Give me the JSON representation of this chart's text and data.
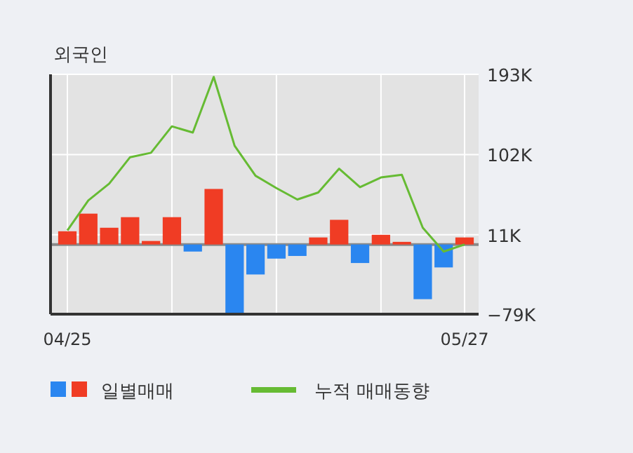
{
  "chart_data": {
    "type": "bar",
    "title": "외국인",
    "categories": [
      "04/25",
      null,
      null,
      null,
      null,
      null,
      null,
      null,
      null,
      null,
      null,
      null,
      null,
      null,
      null,
      null,
      null,
      null,
      null,
      "05/27"
    ],
    "series": [
      {
        "name": "일별매매",
        "colors": [
          "#f03c24",
          "#f03c24",
          "#f03c24",
          "#f03c24",
          "#f03c24",
          "#f03c24",
          "#2a86f0",
          "#f03c24",
          "#2a86f0",
          "#2a86f0",
          "#2a86f0",
          "#2a86f0",
          "#f03c24",
          "#f03c24",
          "#2a86f0",
          "#f03c24",
          "#f03c24",
          "#2a86f0",
          "#2a86f0",
          "#f03c24"
        ],
        "values": [
          15,
          35,
          19,
          31,
          4,
          31,
          -8,
          63,
          -78,
          -34,
          -16,
          -13,
          8,
          28,
          -21,
          11,
          3,
          -62,
          -26,
          8
        ]
      },
      {
        "name": "누적 매매동향",
        "type": "line",
        "color": "#66bb33",
        "values": [
          16,
          50,
          69,
          99,
          104,
          134,
          127,
          190,
          112,
          78,
          64,
          51,
          59,
          86,
          65,
          76,
          79,
          19,
          -8,
          0
        ]
      }
    ],
    "ylim": [
      -79,
      193
    ],
    "yticks": [
      {
        "value": 193,
        "label": "193K"
      },
      {
        "value": 102,
        "label": "102K"
      },
      {
        "value": 11,
        "label": "11K"
      },
      {
        "value": -79,
        "label": "−79K"
      }
    ],
    "ref_lines": [
      {
        "axis": "y",
        "value": 0,
        "color": "#8a8a8a"
      }
    ],
    "grid": true,
    "legend": "bottom",
    "marker": "none",
    "line_style": "solid"
  }
}
